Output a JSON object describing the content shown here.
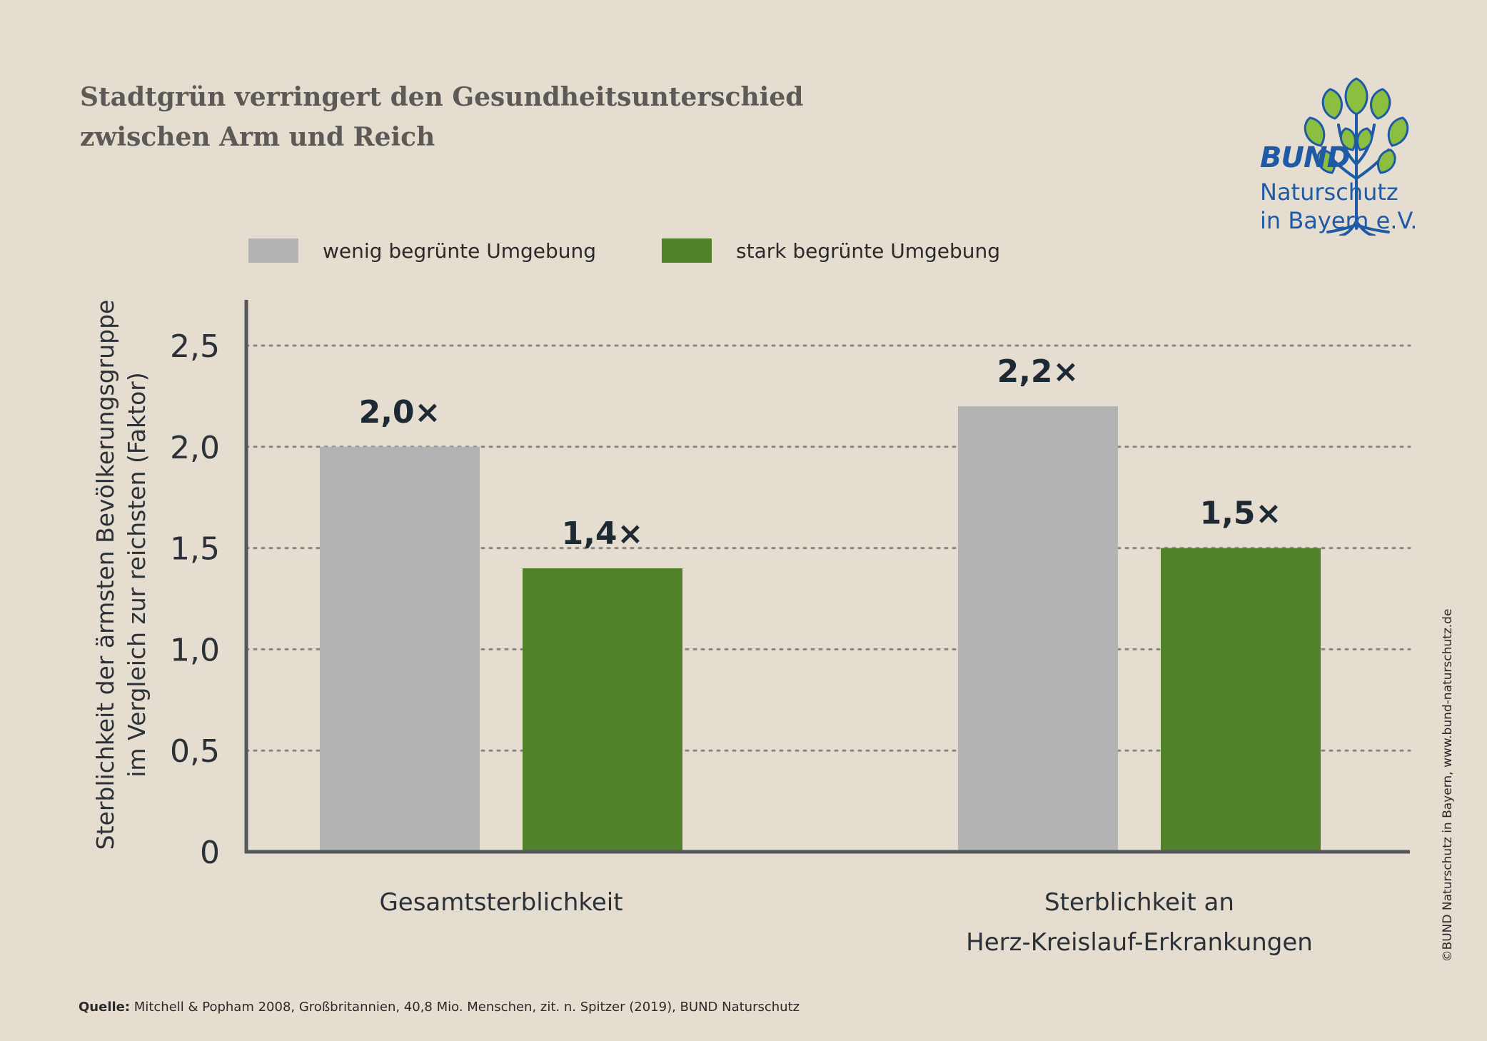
{
  "title": {
    "line1": "Stadtgrün verringert den Gesundheitsunterschied",
    "line2": "zwischen Arm und Reich"
  },
  "logo": {
    "brand": "BUND",
    "line1": "Naturschutz",
    "line2": "in Bayern e.V.",
    "icon": "tree-logo-icon",
    "color": "#1f5aa6",
    "leaf_color": "#8cbf3f"
  },
  "legend": [
    {
      "label": "wenig begrünte Umgebung",
      "color": "#b3b3b3"
    },
    {
      "label": "stark begrünte Umgebung",
      "color": "#52812c"
    }
  ],
  "chart_data": {
    "type": "bar",
    "ylabel_line1": "Sterblichkeit der ärmsten Bevölkerungsgruppe",
    "ylabel_line2": "im Vergleich zur reichsten (Faktor)",
    "ylim": [
      0,
      2.7
    ],
    "yticks": [
      {
        "value": 0,
        "label": "0"
      },
      {
        "value": 0.5,
        "label": "0,5"
      },
      {
        "value": 1.0,
        "label": "1,0"
      },
      {
        "value": 1.5,
        "label": "1,5"
      },
      {
        "value": 2.0,
        "label": "2,0"
      },
      {
        "value": 2.5,
        "label": "2,5"
      }
    ],
    "grid": true,
    "categories": [
      {
        "lines": [
          "Gesamtsterblichkeit"
        ]
      },
      {
        "lines": [
          "Sterblichkeit an",
          "Herz-Kreislauf-Erkrankungen"
        ]
      }
    ],
    "series": [
      {
        "name": "wenig begrünte Umgebung",
        "color": "#b3b3b3",
        "values": [
          2.0,
          2.2
        ],
        "labels": [
          "2,0×",
          "2,2×"
        ]
      },
      {
        "name": "stark begrünte Umgebung",
        "color": "#52812c",
        "values": [
          1.4,
          1.5
        ],
        "labels": [
          "1,4×",
          "1,5×"
        ]
      }
    ]
  },
  "source": {
    "prefix": "Quelle:",
    "text": " Mitchell & Popham 2008, Großbritannien, 40,8 Mio. Menschen, zit. n. Spitzer (2019), BUND Naturschutz"
  },
  "copyright": "©BUND Naturschutz in Bayern, www.bund-naturschutz.de"
}
